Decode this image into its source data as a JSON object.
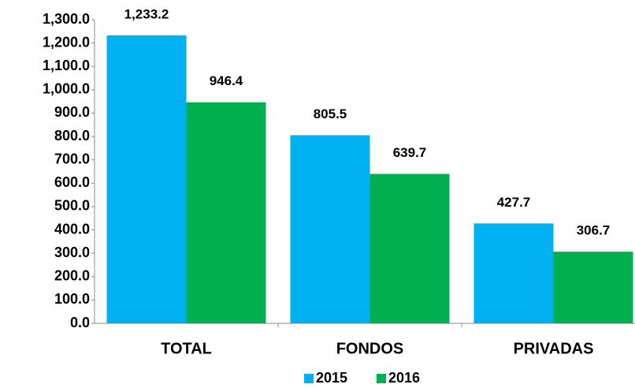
{
  "chart_data": {
    "type": "bar",
    "categories": [
      "TOTAL",
      "FONDOS",
      "PRIVADAS"
    ],
    "series": [
      {
        "name": "2015",
        "color": "#00b0f0",
        "values": [
          1233.2,
          805.5,
          427.7
        ],
        "value_labels": [
          "1,233.2",
          "805.5",
          "427.7"
        ]
      },
      {
        "name": "2016",
        "color": "#00b050",
        "values": [
          946.4,
          639.7,
          306.7
        ]
      }
    ],
    "ylim": [
      0,
      1300
    ],
    "yticks": [
      {
        "value": 0,
        "label": "0.0"
      },
      {
        "value": 100,
        "label": "100.0"
      },
      {
        "value": 200,
        "label": "200.0"
      },
      {
        "value": 300,
        "label": "300.0"
      },
      {
        "value": 400,
        "label": "400.0"
      },
      {
        "value": 500,
        "label": "500.0"
      },
      {
        "value": 600,
        "label": "600.0"
      },
      {
        "value": 700,
        "label": "700.0"
      },
      {
        "value": 800,
        "label": "800.0"
      },
      {
        "value": 900,
        "label": "900.0"
      },
      {
        "value": 1000,
        "label": "1,000.0"
      },
      {
        "value": 1100,
        "label": "1,100.0"
      },
      {
        "value": 1200,
        "label": "1,200.0"
      },
      {
        "value": 1300,
        "label": "1,300.0"
      }
    ],
    "grid": false,
    "legend": "bottom"
  }
}
